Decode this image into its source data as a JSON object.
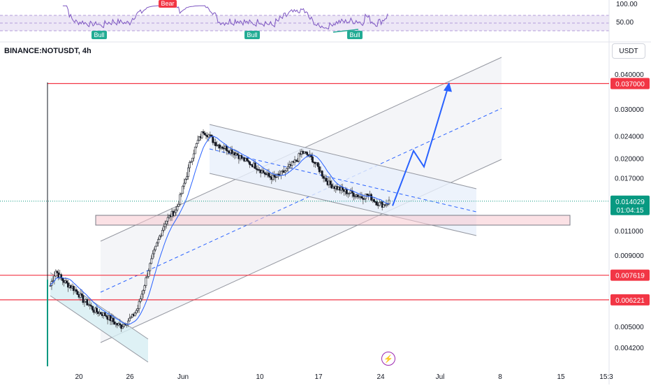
{
  "chart_data": {
    "type": "candlestick",
    "symbol": "BINANCE:NOTUSDT, 4h",
    "currency": "USDT",
    "y_scale": "log",
    "y_ticks": [
      "0.040000",
      "0.030000",
      "0.024000",
      "0.020000",
      "0.017000",
      "0.011000",
      "0.009000",
      "0.005000",
      "0.004200"
    ],
    "x_ticks": [
      "20",
      "26",
      "Jun",
      "10",
      "17",
      "24",
      "Jul",
      "8",
      "15",
      "15:3"
    ],
    "levels": [
      {
        "label": "0.037000",
        "value": 0.037,
        "color": "#f23645"
      },
      {
        "label": "0.007619",
        "value": 0.007619,
        "color": "#f23645"
      },
      {
        "label": "0.006221",
        "value": 0.006221,
        "color": "#f23645"
      }
    ],
    "last_price": {
      "label": "0.014029",
      "countdown": "01:04:15",
      "value": 0.014029,
      "color": "#089981"
    },
    "support_zone": {
      "low": 0.0116,
      "high": 0.0124,
      "color": "#f7c9cf"
    },
    "projection": {
      "from": 0.0135,
      "to": 0.037,
      "color": "#2962ff"
    },
    "rsi": {
      "ticks": [
        "100.00",
        "50.00"
      ],
      "signals": [
        {
          "label": "Bull",
          "type": "bull"
        },
        {
          "label": "Bear",
          "type": "bear"
        },
        {
          "label": "Bull",
          "type": "bull"
        },
        {
          "label": "Bull",
          "type": "bull"
        }
      ]
    },
    "price_path": [
      0.007,
      0.0079,
      0.0074,
      0.0071,
      0.0069,
      0.0066,
      0.0062,
      0.006,
      0.0057,
      0.0056,
      0.0055,
      0.0053,
      0.0051,
      0.005,
      0.0052,
      0.0054,
      0.0058,
      0.0068,
      0.008,
      0.0092,
      0.0105,
      0.0118,
      0.0125,
      0.013,
      0.015,
      0.0175,
      0.0205,
      0.023,
      0.025,
      0.0242,
      0.0228,
      0.0222,
      0.0218,
      0.0213,
      0.0208,
      0.02,
      0.0194,
      0.019,
      0.0185,
      0.0178,
      0.0172,
      0.017,
      0.0174,
      0.018,
      0.0188,
      0.0196,
      0.021,
      0.0206,
      0.0198,
      0.0185,
      0.0172,
      0.0162,
      0.0158,
      0.0155,
      0.0152,
      0.015,
      0.0148,
      0.0145,
      0.0148,
      0.0143,
      0.0138,
      0.0136,
      0.014
    ]
  }
}
